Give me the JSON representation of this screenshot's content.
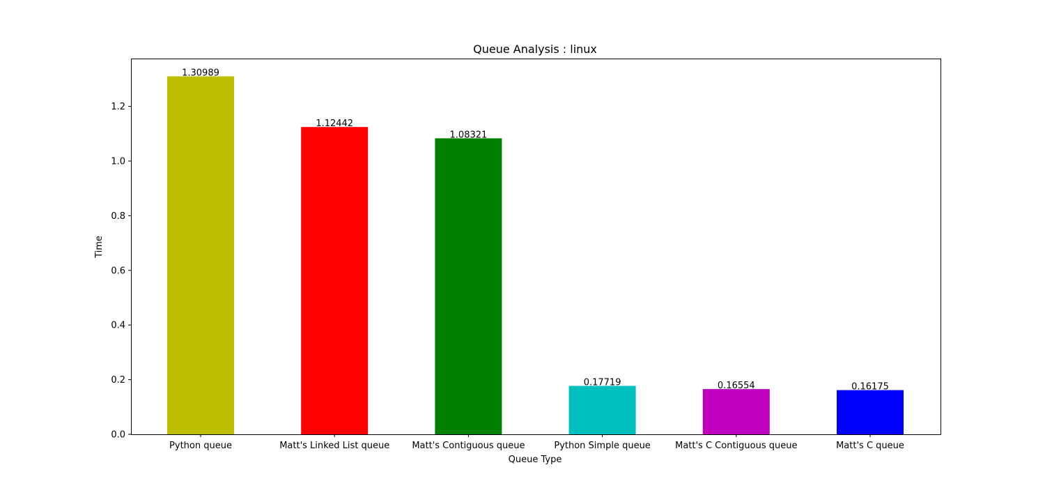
{
  "chart_data": {
    "type": "bar",
    "title": "Queue Analysis : linux",
    "xlabel": "Queue Type",
    "ylabel": "Time",
    "categories": [
      "Python queue",
      "Matt's Linked List queue",
      "Matt's Contiguous queue",
      "Python Simple queue",
      "Matt's C Contiguous queue",
      "Matt's C queue"
    ],
    "values": [
      1.30989,
      1.12442,
      1.08321,
      0.17719,
      0.16554,
      0.16175
    ],
    "value_labels": [
      "1.30989",
      "1.12442",
      "1.08321",
      "0.17719",
      "0.16554",
      "0.16175"
    ],
    "colors": [
      "#bfbf00",
      "#ff0000",
      "#008000",
      "#00bfbf",
      "#bf00bf",
      "#0000ff"
    ],
    "ylim": [
      0,
      1.375
    ],
    "yticks": [
      0.0,
      0.2,
      0.4,
      0.6,
      0.8,
      1.0,
      1.2
    ],
    "ytick_labels": [
      "0.0",
      "0.2",
      "0.4",
      "0.6",
      "0.8",
      "1.0",
      "1.2"
    ],
    "grid": false,
    "legend": "none"
  }
}
